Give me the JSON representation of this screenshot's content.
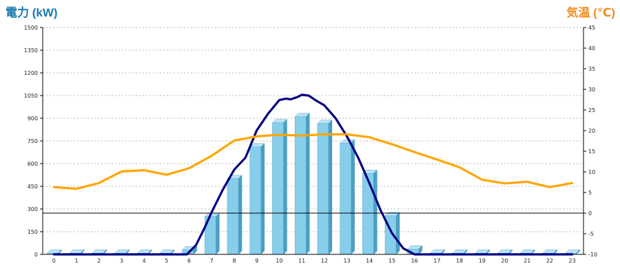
{
  "chart_data": {
    "type": "bar",
    "y_left_title": "電力 (kW)",
    "y_right_title": "気温 (℃)",
    "categories": [
      "0",
      "1",
      "2",
      "3",
      "4",
      "5",
      "6",
      "7",
      "8",
      "9",
      "10",
      "11",
      "12",
      "13",
      "14",
      "15",
      "16",
      "17",
      "18",
      "19",
      "20",
      "21",
      "22",
      "23"
    ],
    "y_left": {
      "min": 0,
      "max": 1500,
      "step": 150,
      "ticks": [
        "0",
        "150",
        "300",
        "450",
        "600",
        "750",
        "900",
        "1050",
        "1200",
        "1350",
        "1500"
      ]
    },
    "y_right": {
      "min": -10,
      "max": 45,
      "step": 5,
      "ticks": [
        "-10",
        "-5",
        "0",
        "5",
        "10",
        "15",
        "20",
        "25",
        "30",
        "35",
        "40",
        "45"
      ]
    },
    "grid": true,
    "series": [
      {
        "kind": "bar",
        "axis": "left",
        "values": [
          8,
          8,
          8,
          8,
          8,
          8,
          30,
          250,
          500,
          710,
          870,
          910,
          865,
          735,
          535,
          255,
          35,
          8,
          8,
          8,
          8,
          8,
          8,
          8
        ],
        "color": "#87ceeb"
      },
      {
        "kind": "line",
        "axis": "left",
        "color": "#000080",
        "x": [
          0,
          5.9,
          6.3,
          6.7,
          7.0,
          7.5,
          8.0,
          8.5,
          9.0,
          9.5,
          10.0,
          10.3,
          10.5,
          10.8,
          11.0,
          11.3,
          11.6,
          12.0,
          12.5,
          13.0,
          13.5,
          14.0,
          14.5,
          15.0,
          15.5,
          16.0,
          17.0,
          23.0
        ],
        "y": [
          0,
          0,
          60,
          180,
          280,
          430,
          560,
          640,
          820,
          930,
          1020,
          1030,
          1025,
          1040,
          1055,
          1050,
          1020,
          985,
          900,
          780,
          640,
          470,
          290,
          140,
          40,
          0,
          0,
          0
        ]
      },
      {
        "kind": "line",
        "axis": "right",
        "color": "#ffa500",
        "x": [
          0,
          1,
          2,
          3,
          4,
          5,
          6,
          7,
          8,
          9,
          10,
          11,
          12,
          13,
          14,
          15,
          16,
          17,
          18,
          19,
          20,
          21,
          22,
          23
        ],
        "y": [
          6.3,
          5.9,
          7.3,
          10.1,
          10.4,
          9.3,
          10.9,
          13.9,
          17.6,
          18.6,
          19.0,
          18.8,
          19.1,
          19.1,
          18.4,
          16.7,
          14.8,
          13.0,
          11.1,
          8.1,
          7.2,
          7.6,
          6.3,
          7.3
        ]
      }
    ]
  }
}
